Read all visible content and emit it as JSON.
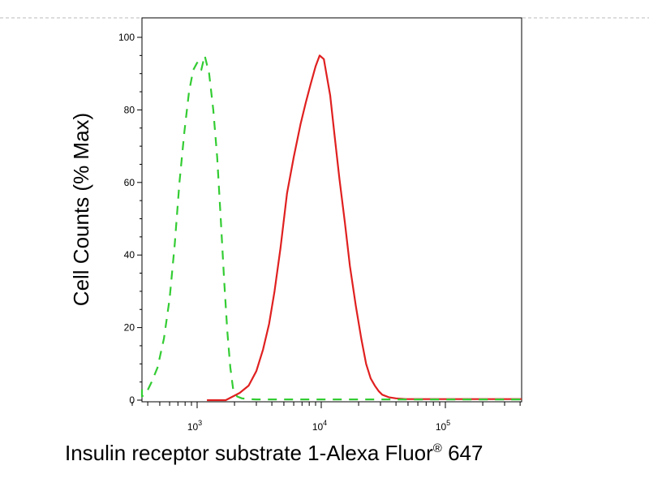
{
  "chart_data": {
    "type": "line",
    "title": "",
    "xlabel": {
      "text": "Insulin receptor substrate 1-Alexa Fluor",
      "superscript": "®",
      "suffix": " 647"
    },
    "ylabel": "Cell Counts (% Max)",
    "xscale": "log",
    "xlim": [
      300,
      450000
    ],
    "ylim": [
      0,
      100
    ],
    "y_ticks": [
      "0",
      "20",
      "40",
      "60",
      "80",
      "100"
    ],
    "x_tick_labels": [
      {
        "base": "10",
        "exp": "3"
      },
      {
        "base": "10",
        "exp": "4"
      },
      {
        "base": "10",
        "exp": "5"
      }
    ],
    "grid": false,
    "legend": "none",
    "series": [
      {
        "color": "#e02020",
        "style": "solid",
        "x": [
          1200,
          1700,
          2200,
          2600,
          3000,
          3400,
          3800,
          4200,
          4700,
          5300,
          6000,
          6800,
          7500,
          8200,
          9000,
          9700,
          10500,
          11000,
          11800,
          12800,
          14000,
          15500,
          17000,
          19000,
          21000,
          23000,
          25000,
          27000,
          29000,
          31000,
          35000,
          40000,
          48000,
          60000,
          100000,
          200000,
          450000
        ],
        "y": [
          0,
          0,
          2,
          4,
          8,
          14,
          21,
          30,
          42,
          57,
          67,
          76,
          82,
          87,
          92,
          95,
          94,
          90,
          84,
          73,
          61,
          49,
          37,
          26,
          17,
          10,
          6,
          4,
          2.5,
          1.5,
          0.8,
          0.5,
          0.3,
          0.3,
          0.3,
          0.3,
          0.3
        ]
      },
      {
        "color": "#33cc33",
        "style": "dashed",
        "x": [
          300,
          320,
          350,
          390,
          430,
          480,
          540,
          600,
          660,
          720,
          790,
          860,
          930,
          1000,
          1080,
          1150,
          1250,
          1350,
          1450,
          1550,
          1650,
          1750,
          1850,
          1950,
          2100,
          2300,
          2600,
          3000,
          5000,
          10000,
          50000,
          450000
        ],
        "y": [
          3,
          2,
          1,
          2,
          5,
          9,
          17,
          28,
          43,
          60,
          74,
          85,
          91,
          93,
          91,
          95,
          90,
          80,
          67,
          50,
          33,
          19,
          9,
          3,
          1,
          0.5,
          0.3,
          0.2,
          0.2,
          0.2,
          0.2,
          0.2
        ]
      }
    ]
  }
}
